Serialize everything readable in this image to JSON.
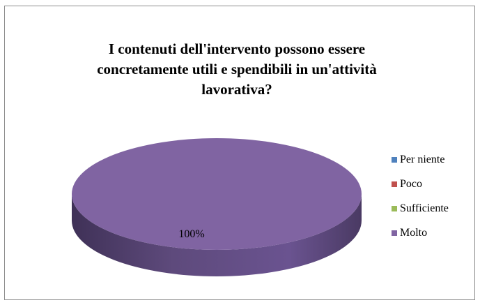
{
  "colors": {
    "per_niente": "#4F81BD",
    "poco": "#C0504D",
    "sufficiente": "#9BBB59",
    "molto": "#8064A2",
    "molto_side": "#5E4A7C"
  },
  "chart_data": {
    "type": "pie",
    "title": "I contenuti dell'intervento possono essere concretamente utili e spendibili in un'attività lavorativa?",
    "categories": [
      "Per niente",
      "Poco",
      "Sufficiente",
      "Molto"
    ],
    "values": [
      0,
      0,
      0,
      100
    ],
    "data_labels": [
      "100%"
    ],
    "legend_position": "right",
    "style": "3d"
  }
}
